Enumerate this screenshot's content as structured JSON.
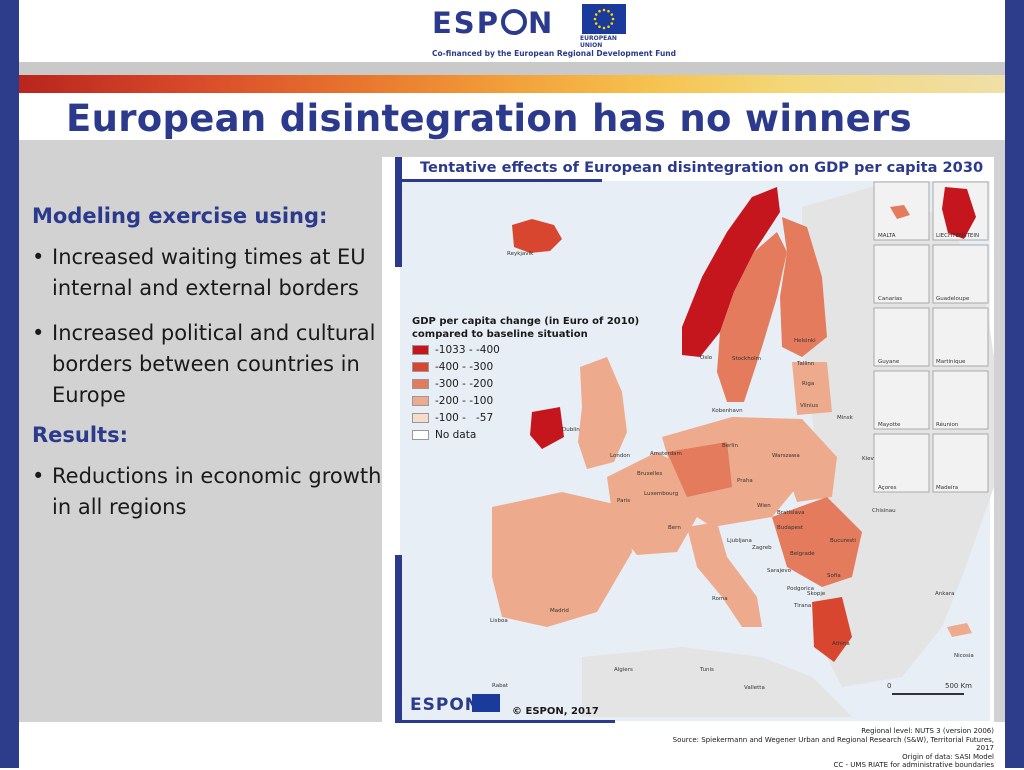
{
  "header": {
    "logo_text": "ESP N",
    "eu_caption": "EUROPEAN UNION",
    "cofinanced": "Co-financed by the European Regional Development Fund"
  },
  "slide": {
    "title": "European disintegration has no winners",
    "heading": "Modeling exercise using:",
    "bullets": [
      "Increased waiting times at EU internal and external borders",
      "Increased political and cultural borders between countries in Europe"
    ],
    "results_heading": "Results:",
    "results_bullets": [
      "Reductions in economic growth in all regions"
    ]
  },
  "map": {
    "title": "Tentative effects of European disintegration on GDP per capita 2030",
    "legend_title": "GDP per capita change (in Euro of 2010) compared to baseline situation",
    "legend": [
      {
        "label": "-1033 - -400",
        "color": "#c4161c"
      },
      {
        "label": "-400 - -300",
        "color": "#d9462f"
      },
      {
        "label": "-300 - -200",
        "color": "#e37b5c"
      },
      {
        "label": "-200 - -100",
        "color": "#eeaa8c"
      },
      {
        "label": "-100 -   -57",
        "color": "#f8dccb"
      },
      {
        "label": "No data",
        "color": "#ffffff"
      }
    ],
    "inset_labels": [
      "MALTA",
      "LIECHTENSTEIN",
      "Canarias",
      "Guadeloupe",
      "Guyane",
      "Martinique",
      "Mayotte",
      "Réunion",
      "Açores",
      "Madeira"
    ],
    "cities": [
      "Reykjavík",
      "Oslo",
      "Stockholm",
      "Helsinki",
      "Tallinn",
      "Riga",
      "Vilnius",
      "Minsk",
      "Kiev",
      "Kobenhavn",
      "Dublin",
      "London",
      "Amsterdam",
      "Bruxelles",
      "Berlin",
      "Warszawa",
      "Praha",
      "Luxembourg",
      "Paris",
      "Bern",
      "Wien",
      "Bratislava",
      "Budapest",
      "Ljubljana",
      "Zagreb",
      "Belgrade",
      "Bucuresti",
      "Chisinau",
      "Sarajevo",
      "Podgorica",
      "Skopje",
      "Tirana",
      "Sofia",
      "Athina",
      "Ankara",
      "Nicosia",
      "Roma",
      "Madrid",
      "Lisboa",
      "Valletta",
      "Algiers",
      "Tunis",
      "Rabat"
    ],
    "scale": {
      "zero": "0",
      "label": "500 Km"
    },
    "copyright": "© ESPON, 2017",
    "footer_logo": "ESPON",
    "sources": [
      "Regional level: NUTS 3 (version 2006)",
      "Source: Spiekermann and Wegener Urban and Regional Research (S&W), Territorial Futures, 2017",
      "Origin of data: SASI Model",
      "CC - UMS RIATE for administrative boundaries"
    ]
  },
  "colors": {
    "brand_blue": "#2b3a8c",
    "side_bars": "#2e3c8c",
    "sea": "#e8eef5",
    "non_eu_land": "#e6e6e6"
  }
}
